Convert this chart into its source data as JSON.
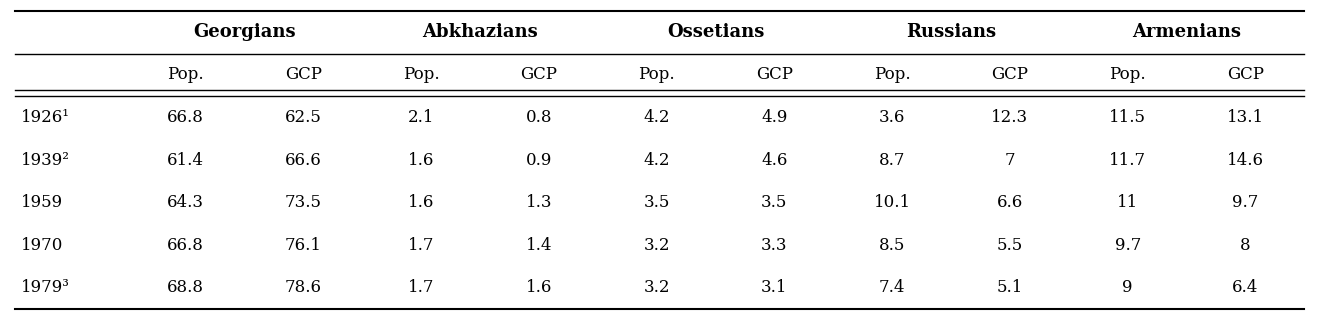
{
  "group_headers": [
    "Georgians",
    "Abkhazians",
    "Ossetians",
    "Russians",
    "Armenians"
  ],
  "sub_headers": [
    "Pop.",
    "GCP"
  ],
  "row_labels": [
    "1926¹",
    "1939²",
    "1959",
    "1970",
    "1979³"
  ],
  "data": [
    [
      66.8,
      62.5,
      2.1,
      0.8,
      4.2,
      4.9,
      3.6,
      12.3,
      11.5,
      13.1
    ],
    [
      61.4,
      66.6,
      1.6,
      0.9,
      4.2,
      4.6,
      8.7,
      7,
      11.7,
      14.6
    ],
    [
      64.3,
      73.5,
      1.6,
      1.3,
      3.5,
      3.5,
      10.1,
      6.6,
      11,
      9.7
    ],
    [
      66.8,
      76.1,
      1.7,
      1.4,
      3.2,
      3.3,
      8.5,
      5.5,
      9.7,
      8
    ],
    [
      68.8,
      78.6,
      1.7,
      1.6,
      3.2,
      3.1,
      7.4,
      5.1,
      9,
      6.4
    ]
  ],
  "background_color": "#ffffff",
  "text_color": "#000000",
  "header_fontsize": 13,
  "cell_fontsize": 12,
  "row_label_fontsize": 12,
  "line_color": "#000000",
  "figsize": [
    13.19,
    3.2
  ],
  "dpi": 100
}
